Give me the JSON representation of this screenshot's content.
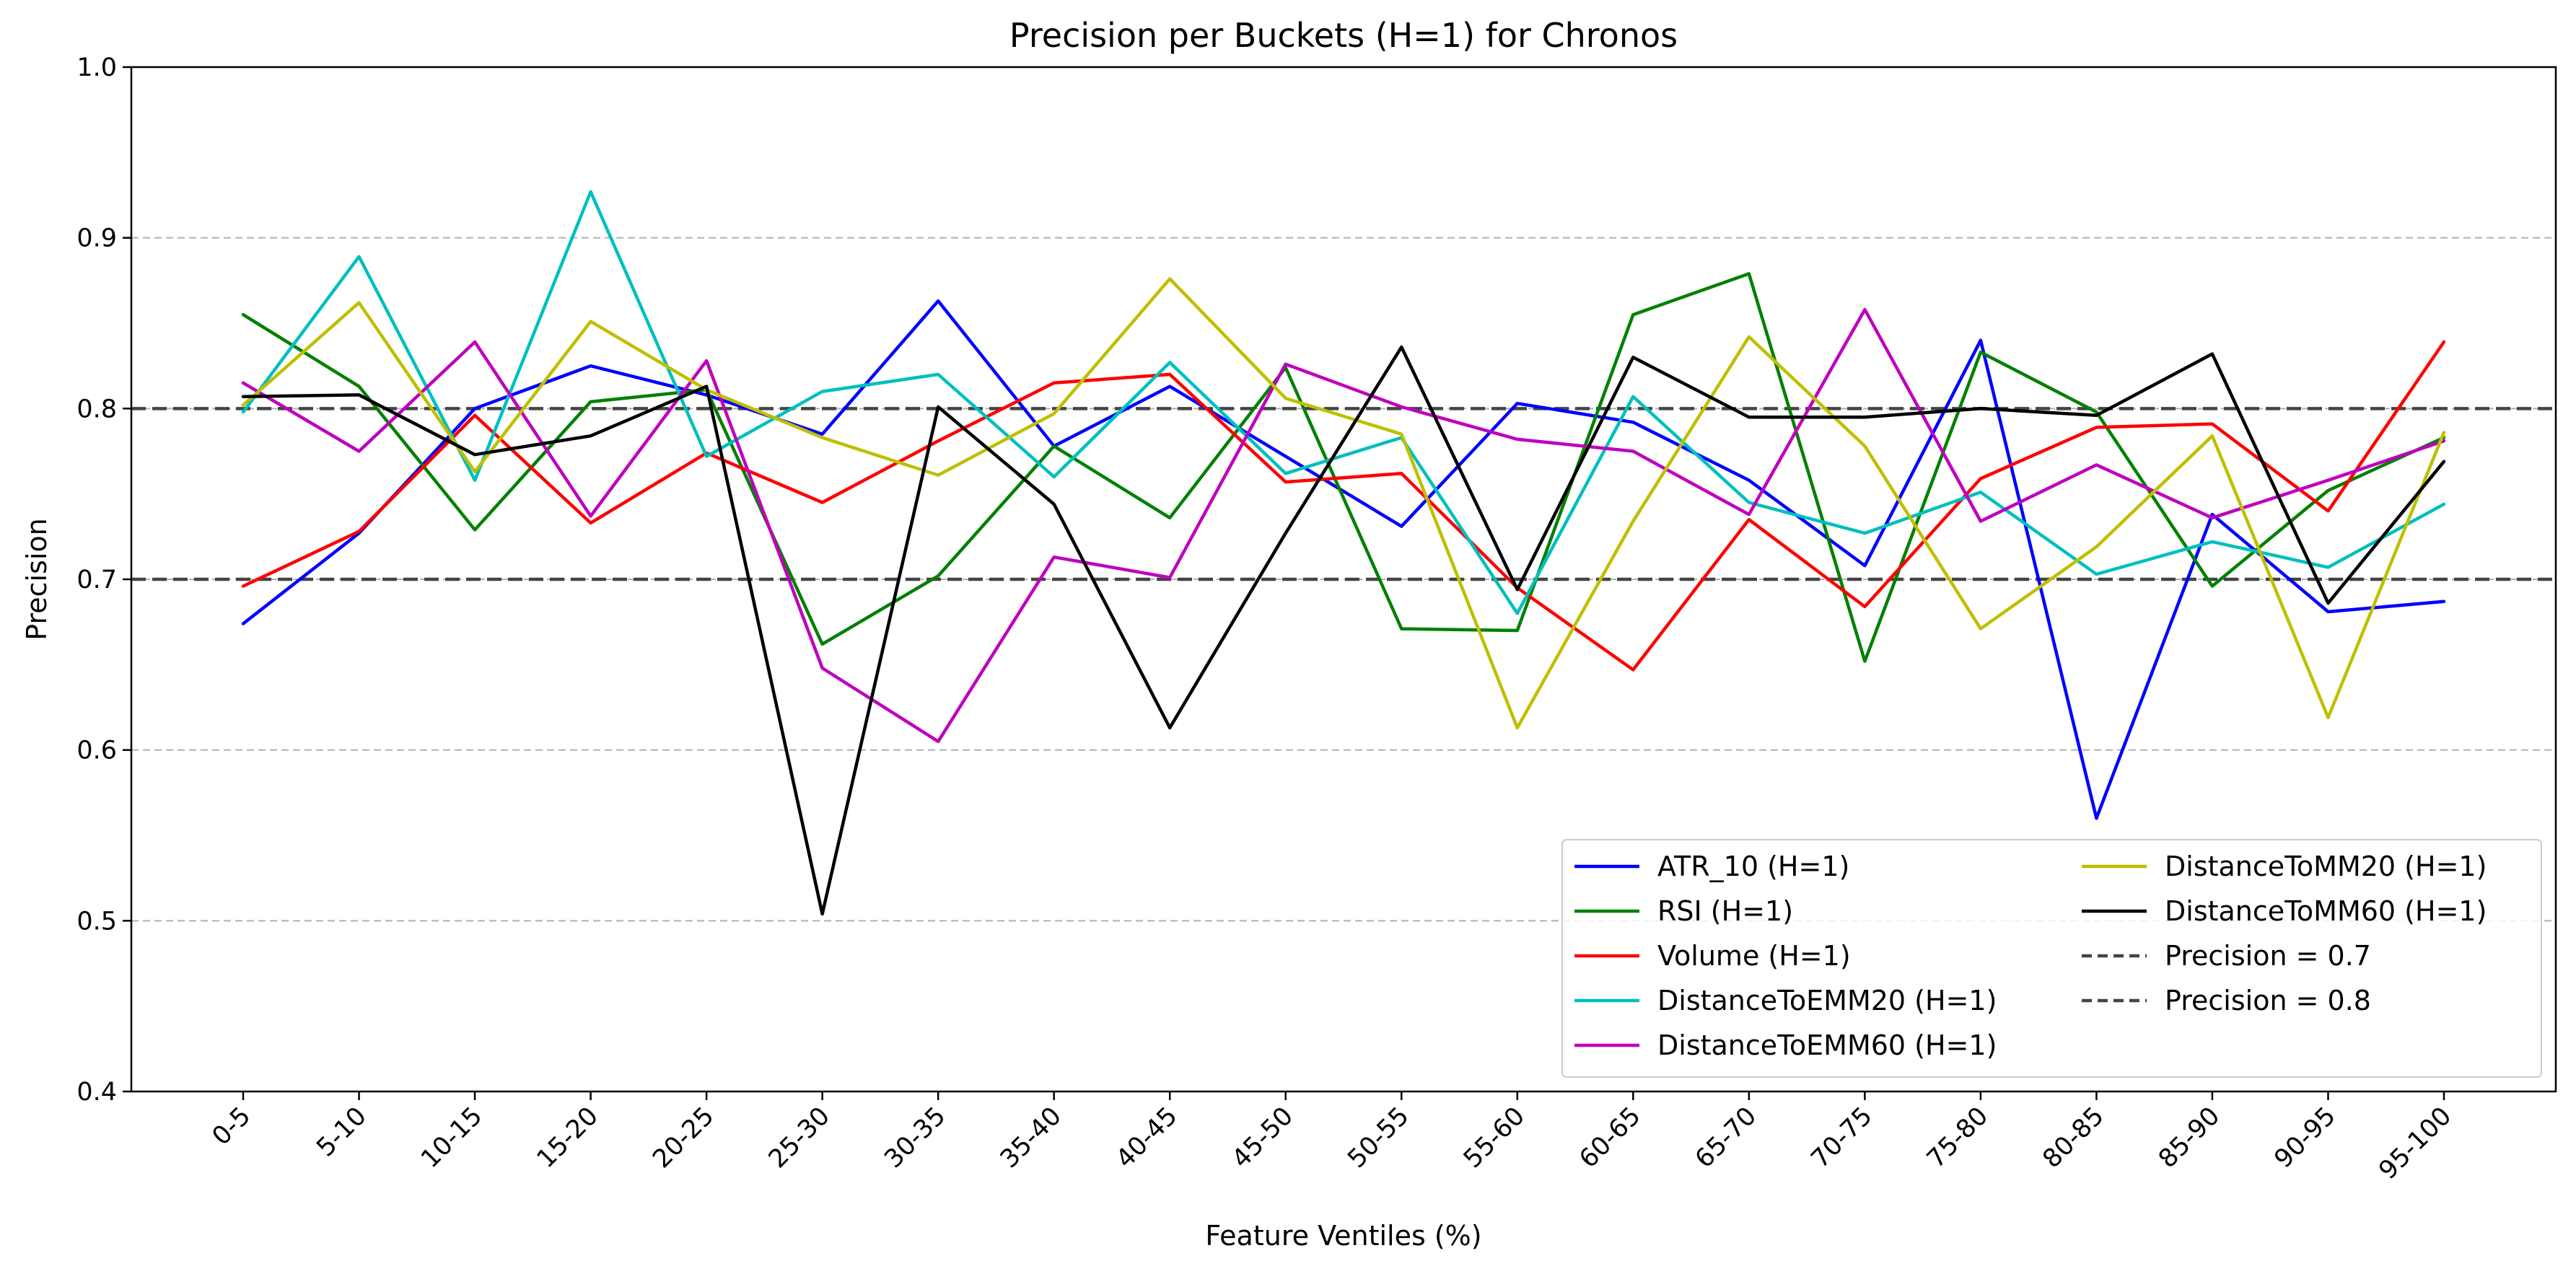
{
  "chart_data": {
    "type": "line",
    "title": "Precision per Buckets (H=1) for Chronos",
    "xlabel": "Feature Ventiles (%)",
    "ylabel": "Precision",
    "ylim": [
      0.4,
      1.0
    ],
    "yticks": [
      0.4,
      0.5,
      0.6,
      0.7,
      0.8,
      0.9,
      1.0
    ],
    "grid": "horizontal dashed",
    "legend_position": "lower-right",
    "categories": [
      "0-5",
      "5-10",
      "10-15",
      "15-20",
      "20-25",
      "25-30",
      "30-35",
      "35-40",
      "40-45",
      "45-50",
      "50-55",
      "55-60",
      "60-65",
      "65-70",
      "70-75",
      "75-80",
      "80-85",
      "85-90",
      "90-95",
      "95-100"
    ],
    "series": [
      {
        "name": "ATR_10 (H=1)",
        "color": "#0000ff",
        "values": [
          0.674,
          0.727,
          0.8,
          0.825,
          0.808,
          0.785,
          0.863,
          0.778,
          0.813,
          0.772,
          0.731,
          0.803,
          0.792,
          0.758,
          0.708,
          0.84,
          0.56,
          0.738,
          0.681,
          0.687
        ]
      },
      {
        "name": "RSI (H=1)",
        "color": "#008000",
        "values": [
          0.855,
          0.813,
          0.729,
          0.804,
          0.811,
          0.662,
          0.702,
          0.778,
          0.736,
          0.824,
          0.671,
          0.67,
          0.855,
          0.879,
          0.652,
          0.833,
          0.798,
          0.696,
          0.752,
          0.783
        ]
      },
      {
        "name": "Volume (H=1)",
        "color": "#ff0000",
        "values": [
          0.696,
          0.728,
          0.796,
          0.733,
          0.774,
          0.745,
          0.781,
          0.815,
          0.82,
          0.757,
          0.762,
          0.695,
          0.647,
          0.735,
          0.684,
          0.759,
          0.789,
          0.791,
          0.74,
          0.839
        ]
      },
      {
        "name": "DistanceToEMM20 (H=1)",
        "color": "#00bfbf",
        "values": [
          0.798,
          0.889,
          0.758,
          0.927,
          0.772,
          0.81,
          0.82,
          0.76,
          0.827,
          0.762,
          0.783,
          0.68,
          0.807,
          0.745,
          0.727,
          0.751,
          0.703,
          0.722,
          0.707,
          0.744
        ]
      },
      {
        "name": "DistanceToEMM60 (H=1)",
        "color": "#bf00bf",
        "values": [
          0.815,
          0.775,
          0.839,
          0.737,
          0.828,
          0.648,
          0.605,
          0.713,
          0.701,
          0.826,
          0.801,
          0.782,
          0.775,
          0.738,
          0.858,
          0.734,
          0.767,
          0.736,
          0.758,
          0.781
        ]
      },
      {
        "name": "DistanceToMM20 (H=1)",
        "color": "#bfbf00",
        "values": [
          0.802,
          0.862,
          0.763,
          0.851,
          0.811,
          0.783,
          0.761,
          0.797,
          0.876,
          0.806,
          0.785,
          0.613,
          0.734,
          0.842,
          0.778,
          0.671,
          0.719,
          0.784,
          0.619,
          0.786
        ]
      },
      {
        "name": "DistanceToMM60 (H=1)",
        "color": "#000000",
        "values": [
          0.807,
          0.808,
          0.773,
          0.784,
          0.813,
          0.504,
          0.801,
          0.744,
          0.613,
          0.727,
          0.836,
          0.694,
          0.83,
          0.795,
          0.795,
          0.8,
          0.796,
          0.832,
          0.686,
          0.769
        ]
      }
    ],
    "reference_lines": [
      {
        "name": "Precision = 0.7",
        "value": 0.7,
        "color": "#444444"
      },
      {
        "name": "Precision = 0.8",
        "value": 0.8,
        "color": "#444444"
      }
    ]
  }
}
